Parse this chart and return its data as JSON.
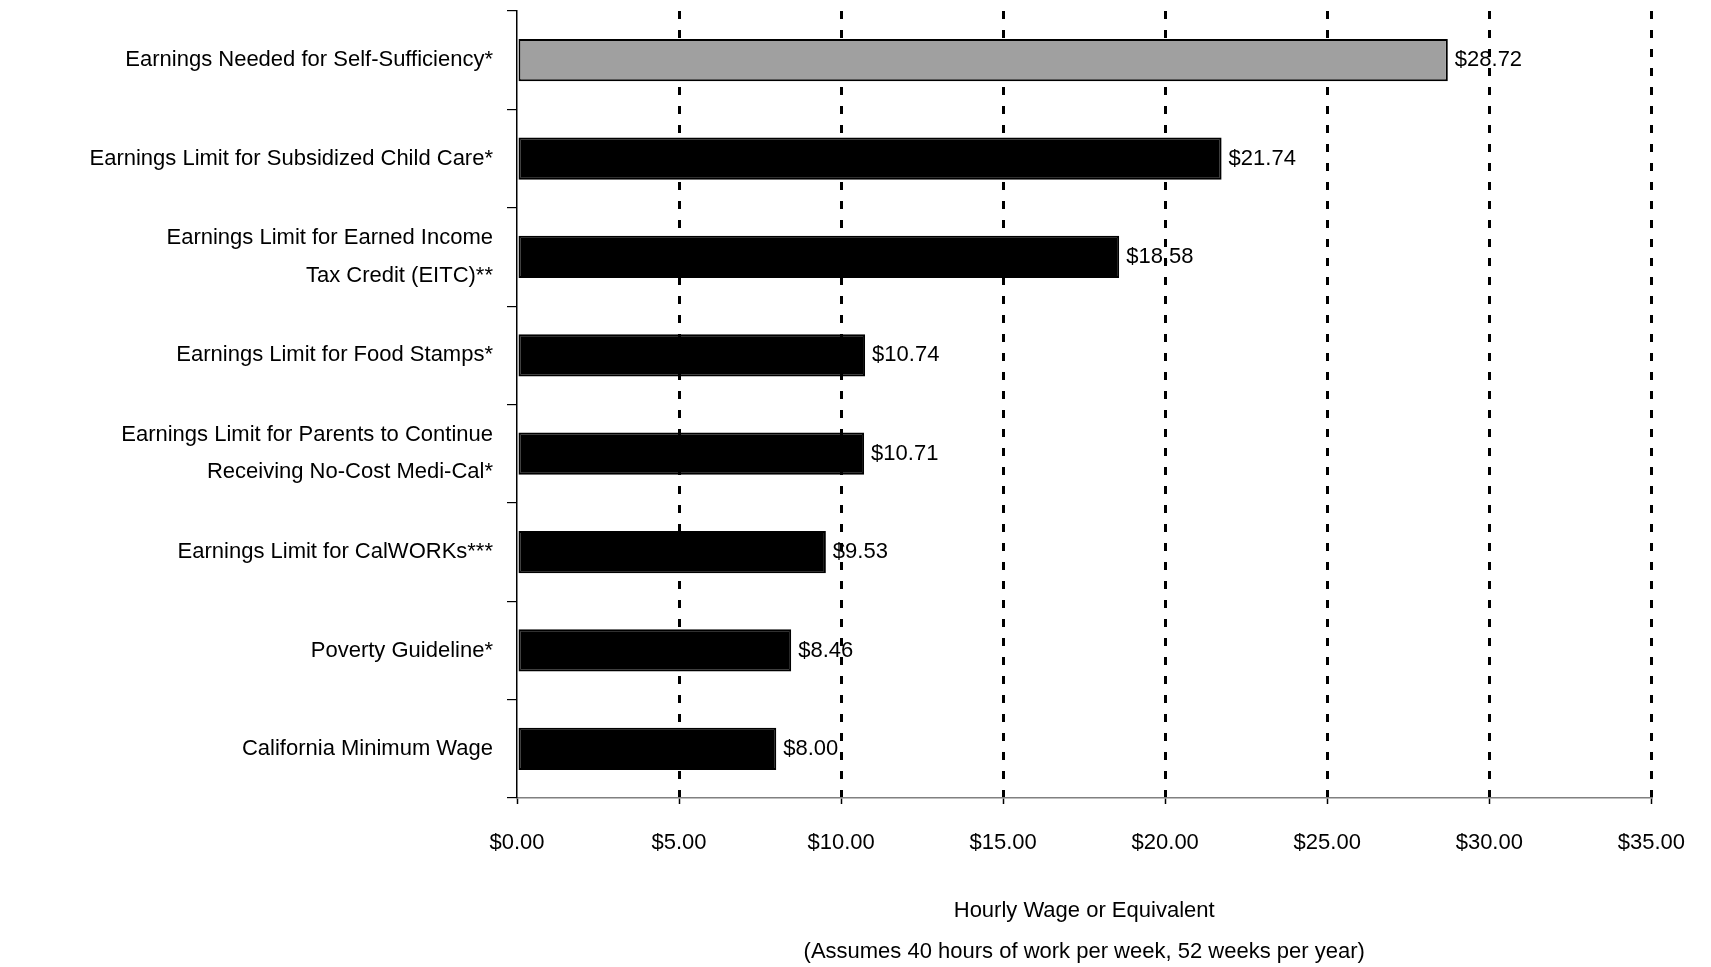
{
  "chart_data": {
    "type": "bar",
    "orientation": "horizontal",
    "categories": [
      "Earnings Needed for Self-Sufficiency*",
      "Earnings Limit for Subsidized Child Care*",
      "Earnings Limit for Earned Income Tax Credit (EITC)**",
      "Earnings Limit for Food Stamps*",
      "Earnings Limit for Parents to Continue Receiving No-Cost Medi-Cal*",
      "Earnings Limit for CalWORKs***",
      "Poverty Guideline*",
      "California Minimum Wage"
    ],
    "values": [
      28.72,
      21.74,
      18.58,
      10.74,
      10.71,
      9.53,
      8.46,
      8.0
    ],
    "colors": [
      "#a0a0a0",
      "#000000",
      "#000000",
      "#000000",
      "#000000",
      "#000000",
      "#000000",
      "#000000"
    ],
    "value_labels": [
      "$28.72",
      "$21.74",
      "$18.58",
      "$10.74",
      "$10.71",
      "$9.53",
      "$8.46",
      "$8.00"
    ],
    "xlabel": "Hourly Wage or Equivalent",
    "annotations": [
      "(Assumes 40 hours of work per week, 52 weeks per year)"
    ],
    "xlim": [
      0,
      35
    ],
    "xticks": [
      {
        "value": 0,
        "label": "$0.00"
      },
      {
        "value": 5,
        "label": "$5.00"
      },
      {
        "value": 10,
        "label": "$10.00"
      },
      {
        "value": 15,
        "label": "$15.00"
      },
      {
        "value": 20,
        "label": "$20.00"
      },
      {
        "value": 25,
        "label": "$25.00"
      },
      {
        "value": 30,
        "label": "$30.00"
      },
      {
        "value": 35,
        "label": "$35.00"
      }
    ],
    "grid": "x"
  }
}
